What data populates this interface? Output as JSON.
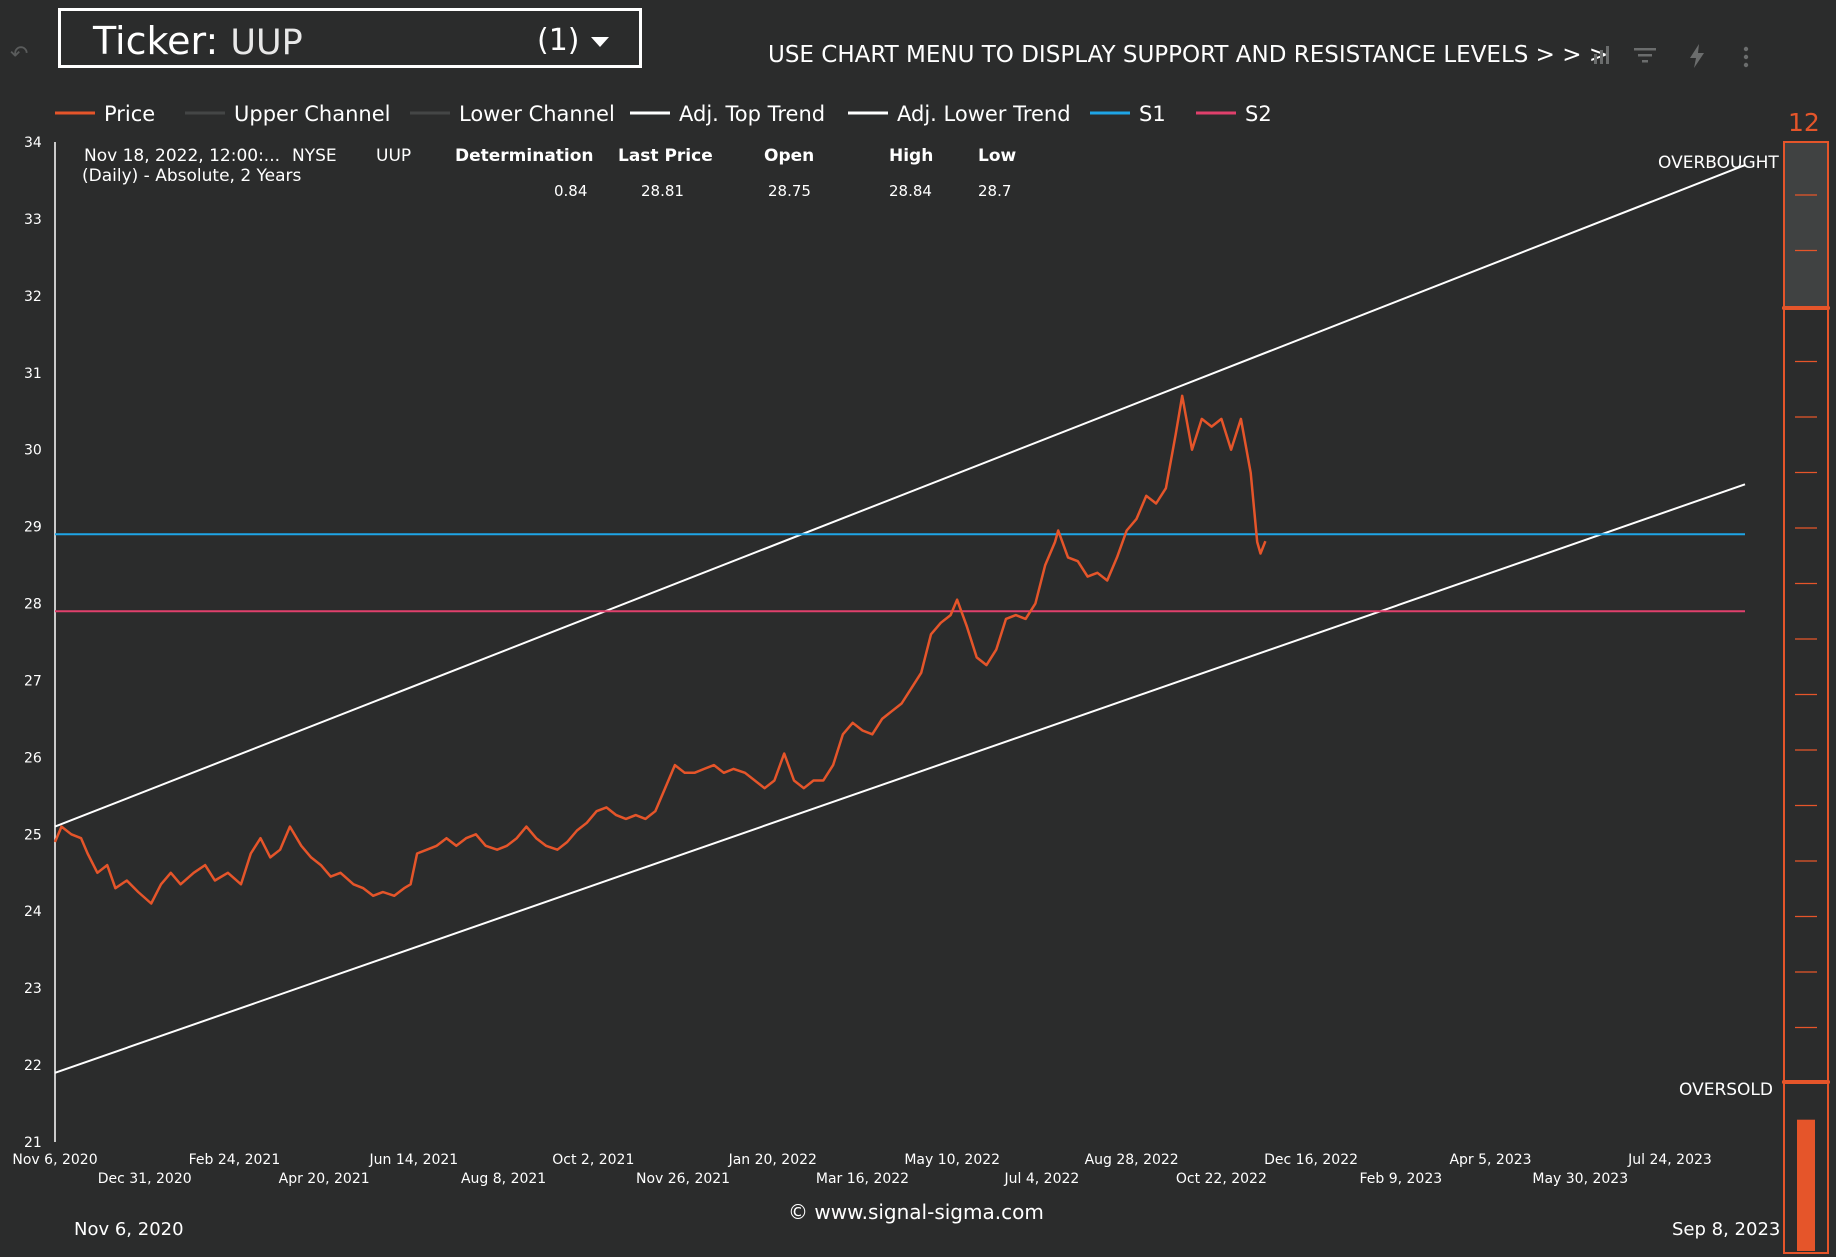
{
  "header": {
    "ticker_label": "Ticker:",
    "ticker_value": "UUP",
    "selection_count": "(1)",
    "banner": "USE CHART MENU TO DISPLAY SUPPORT AND RESISTANCE LEVELS > > >"
  },
  "icons": [
    "undo-icon",
    "chart-menu-icon",
    "filter-icon",
    "lightning-icon",
    "more-vert-icon",
    "caret-down-icon"
  ],
  "info": {
    "date": "Nov 18, 2022, 12:00:...",
    "subtitle": "(Daily) - Absolute, 2 Years",
    "exchange": "NYSE",
    "symbol": "UUP",
    "columns": [
      {
        "header": "Determination",
        "value": "0.84"
      },
      {
        "header": "Last Price",
        "value": "28.81"
      },
      {
        "header": "Open",
        "value": "28.75"
      },
      {
        "header": "High",
        "value": "28.84"
      },
      {
        "header": "Low",
        "value": "28.7"
      }
    ]
  },
  "gauge": {
    "value": "12",
    "overbought_label": "OVERBOUGHT",
    "oversold_label": "OVERSOLD",
    "fill_fraction": 0.12
  },
  "footer": {
    "copyright": "© www.signal-sigma.com",
    "range_start": "Nov 6, 2020",
    "range_end": "Sep 8, 2023"
  },
  "colors": {
    "background": "#2b2c2c",
    "price": "#e5552a",
    "trend": "#ffffff",
    "channel": "#444646",
    "s1": "#1ea5e6",
    "s2": "#e0406c",
    "gauge": "#e5552a"
  },
  "chart_data": {
    "type": "line",
    "ylim": [
      21,
      34
    ],
    "yticks": [
      21,
      22,
      23,
      24,
      25,
      26,
      27,
      28,
      29,
      30,
      31,
      32,
      33,
      34
    ],
    "x_start": "2020-11-06",
    "x_end": "2023-09-08",
    "xticks": [
      {
        "date": "2020-11-06",
        "label": "Nov 6, 2020"
      },
      {
        "date": "2020-12-31",
        "label": "Dec 31, 2020"
      },
      {
        "date": "2021-02-24",
        "label": "Feb 24, 2021"
      },
      {
        "date": "2021-04-20",
        "label": "Apr 20, 2021"
      },
      {
        "date": "2021-06-14",
        "label": "Jun 14, 2021"
      },
      {
        "date": "2021-08-08",
        "label": "Aug 8, 2021"
      },
      {
        "date": "2021-10-02",
        "label": "Oct 2, 2021"
      },
      {
        "date": "2021-11-26",
        "label": "Nov 26, 2021"
      },
      {
        "date": "2022-01-20",
        "label": "Jan 20, 2022"
      },
      {
        "date": "2022-03-16",
        "label": "Mar 16, 2022"
      },
      {
        "date": "2022-05-10",
        "label": "May 10, 2022"
      },
      {
        "date": "2022-07-04",
        "label": "Jul 4, 2022"
      },
      {
        "date": "2022-08-28",
        "label": "Aug 28, 2022"
      },
      {
        "date": "2022-10-22",
        "label": "Oct 22, 2022"
      },
      {
        "date": "2022-12-16",
        "label": "Dec 16, 2022"
      },
      {
        "date": "2023-02-09",
        "label": "Feb 9, 2023"
      },
      {
        "date": "2023-04-05",
        "label": "Apr 5, 2023"
      },
      {
        "date": "2023-05-30",
        "label": "May 30, 2023"
      },
      {
        "date": "2023-07-24",
        "label": "Jul 24, 2023"
      }
    ],
    "legend": [
      {
        "name": "Price",
        "color": "#e5552a"
      },
      {
        "name": "Upper Channel",
        "color": "#444646"
      },
      {
        "name": "Lower Channel",
        "color": "#444646"
      },
      {
        "name": "Adj. Top Trend",
        "color": "#ffffff"
      },
      {
        "name": "Adj. Lower Trend",
        "color": "#ffffff"
      },
      {
        "name": "S1",
        "color": "#1ea5e6"
      },
      {
        "name": "S2",
        "color": "#e0406c"
      }
    ],
    "series": [
      {
        "name": "Price",
        "points": [
          [
            "2020-11-06",
            24.9
          ],
          [
            "2020-11-10",
            25.1
          ],
          [
            "2020-11-16",
            25.0
          ],
          [
            "2020-11-22",
            24.95
          ],
          [
            "2020-11-26",
            24.75
          ],
          [
            "2020-12-02",
            24.5
          ],
          [
            "2020-12-08",
            24.6
          ],
          [
            "2020-12-13",
            24.3
          ],
          [
            "2020-12-20",
            24.4
          ],
          [
            "2020-12-27",
            24.25
          ],
          [
            "2021-01-04",
            24.1
          ],
          [
            "2021-01-10",
            24.35
          ],
          [
            "2021-01-16",
            24.5
          ],
          [
            "2021-01-22",
            24.35
          ],
          [
            "2021-01-30",
            24.5
          ],
          [
            "2021-02-06",
            24.6
          ],
          [
            "2021-02-12",
            24.4
          ],
          [
            "2021-02-20",
            24.5
          ],
          [
            "2021-02-28",
            24.35
          ],
          [
            "2021-03-06",
            24.75
          ],
          [
            "2021-03-12",
            24.95
          ],
          [
            "2021-03-18",
            24.7
          ],
          [
            "2021-03-24",
            24.8
          ],
          [
            "2021-03-30",
            25.1
          ],
          [
            "2021-04-06",
            24.85
          ],
          [
            "2021-04-12",
            24.7
          ],
          [
            "2021-04-18",
            24.6
          ],
          [
            "2021-04-24",
            24.45
          ],
          [
            "2021-04-30",
            24.5
          ],
          [
            "2021-05-08",
            24.35
          ],
          [
            "2021-05-14",
            24.3
          ],
          [
            "2021-05-20",
            24.2
          ],
          [
            "2021-05-26",
            24.25
          ],
          [
            "2021-06-02",
            24.2
          ],
          [
            "2021-06-08",
            24.3
          ],
          [
            "2021-06-12",
            24.35
          ],
          [
            "2021-06-16",
            24.75
          ],
          [
            "2021-06-22",
            24.8
          ],
          [
            "2021-06-28",
            24.85
          ],
          [
            "2021-07-04",
            24.95
          ],
          [
            "2021-07-10",
            24.85
          ],
          [
            "2021-07-16",
            24.95
          ],
          [
            "2021-07-22",
            25.0
          ],
          [
            "2021-07-28",
            24.85
          ],
          [
            "2021-08-04",
            24.8
          ],
          [
            "2021-08-10",
            24.85
          ],
          [
            "2021-08-16",
            24.95
          ],
          [
            "2021-08-22",
            25.1
          ],
          [
            "2021-08-28",
            24.95
          ],
          [
            "2021-09-03",
            24.85
          ],
          [
            "2021-09-10",
            24.8
          ],
          [
            "2021-09-16",
            24.9
          ],
          [
            "2021-09-22",
            25.05
          ],
          [
            "2021-09-28",
            25.15
          ],
          [
            "2021-10-04",
            25.3
          ],
          [
            "2021-10-10",
            25.35
          ],
          [
            "2021-10-16",
            25.25
          ],
          [
            "2021-10-22",
            25.2
          ],
          [
            "2021-10-28",
            25.25
          ],
          [
            "2021-11-03",
            25.2
          ],
          [
            "2021-11-09",
            25.3
          ],
          [
            "2021-11-15",
            25.6
          ],
          [
            "2021-11-21",
            25.9
          ],
          [
            "2021-11-27",
            25.8
          ],
          [
            "2021-12-03",
            25.8
          ],
          [
            "2021-12-09",
            25.85
          ],
          [
            "2021-12-15",
            25.9
          ],
          [
            "2021-12-21",
            25.8
          ],
          [
            "2021-12-27",
            25.85
          ],
          [
            "2022-01-03",
            25.8
          ],
          [
            "2022-01-09",
            25.7
          ],
          [
            "2022-01-15",
            25.6
          ],
          [
            "2022-01-21",
            25.7
          ],
          [
            "2022-01-27",
            26.05
          ],
          [
            "2022-02-02",
            25.7
          ],
          [
            "2022-02-08",
            25.6
          ],
          [
            "2022-02-14",
            25.7
          ],
          [
            "2022-02-20",
            25.7
          ],
          [
            "2022-02-26",
            25.9
          ],
          [
            "2022-03-04",
            26.3
          ],
          [
            "2022-03-10",
            26.45
          ],
          [
            "2022-03-16",
            26.35
          ],
          [
            "2022-03-22",
            26.3
          ],
          [
            "2022-03-28",
            26.5
          ],
          [
            "2022-04-03",
            26.6
          ],
          [
            "2022-04-09",
            26.7
          ],
          [
            "2022-04-15",
            26.9
          ],
          [
            "2022-04-21",
            27.1
          ],
          [
            "2022-04-27",
            27.6
          ],
          [
            "2022-05-03",
            27.75
          ],
          [
            "2022-05-09",
            27.85
          ],
          [
            "2022-05-13",
            28.05
          ],
          [
            "2022-05-19",
            27.7
          ],
          [
            "2022-05-25",
            27.3
          ],
          [
            "2022-05-31",
            27.2
          ],
          [
            "2022-06-06",
            27.4
          ],
          [
            "2022-06-12",
            27.8
          ],
          [
            "2022-06-18",
            27.85
          ],
          [
            "2022-06-24",
            27.8
          ],
          [
            "2022-06-30",
            28.0
          ],
          [
            "2022-07-06",
            28.5
          ],
          [
            "2022-07-12",
            28.8
          ],
          [
            "2022-07-14",
            28.95
          ],
          [
            "2022-07-20",
            28.6
          ],
          [
            "2022-07-26",
            28.55
          ],
          [
            "2022-08-01",
            28.35
          ],
          [
            "2022-08-07",
            28.4
          ],
          [
            "2022-08-13",
            28.3
          ],
          [
            "2022-08-19",
            28.6
          ],
          [
            "2022-08-25",
            28.95
          ],
          [
            "2022-08-31",
            29.1
          ],
          [
            "2022-09-06",
            29.4
          ],
          [
            "2022-09-12",
            29.3
          ],
          [
            "2022-09-18",
            29.5
          ],
          [
            "2022-09-24",
            30.2
          ],
          [
            "2022-09-28",
            30.7
          ],
          [
            "2022-10-04",
            30.0
          ],
          [
            "2022-10-10",
            30.4
          ],
          [
            "2022-10-16",
            30.3
          ],
          [
            "2022-10-22",
            30.4
          ],
          [
            "2022-10-28",
            30.0
          ],
          [
            "2022-11-03",
            30.4
          ],
          [
            "2022-11-09",
            29.7
          ],
          [
            "2022-11-13",
            28.8
          ],
          [
            "2022-11-15",
            28.65
          ],
          [
            "2022-11-18",
            28.81
          ]
        ]
      },
      {
        "name": "Adj. Top Trend",
        "points": [
          [
            "2020-11-06",
            25.1
          ],
          [
            "2023-09-08",
            33.7
          ]
        ]
      },
      {
        "name": "Adj. Lower Trend",
        "points": [
          [
            "2020-11-06",
            21.9
          ],
          [
            "2023-09-08",
            29.55
          ]
        ]
      },
      {
        "name": "S1",
        "points": [
          [
            "2020-11-06",
            28.9
          ],
          [
            "2023-09-08",
            28.9
          ]
        ]
      },
      {
        "name": "S2",
        "points": [
          [
            "2020-11-06",
            27.9
          ],
          [
            "2023-09-08",
            27.9
          ]
        ]
      }
    ]
  }
}
